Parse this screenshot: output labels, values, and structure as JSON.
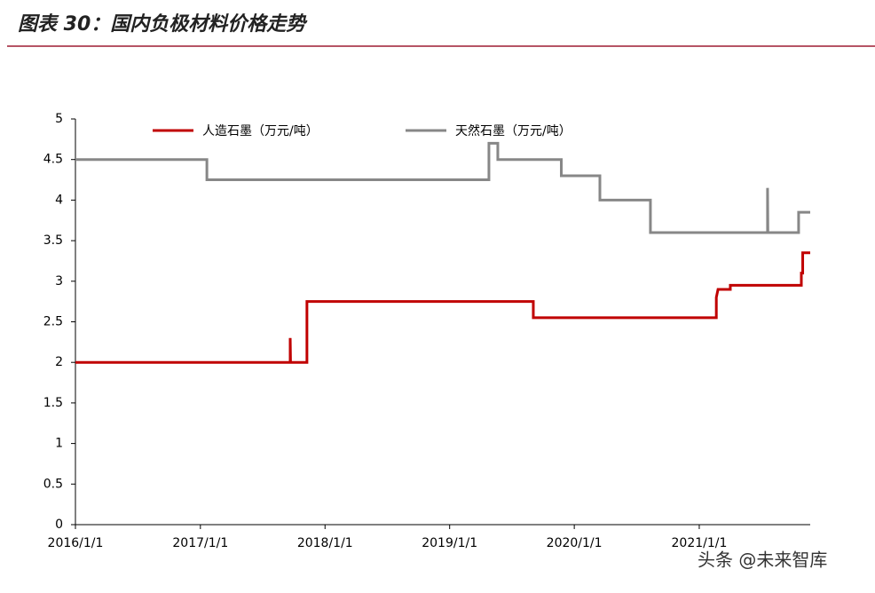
{
  "chart_data": {
    "type": "line",
    "title": "图表 30：国内负极材料价格走势",
    "watermark": "头条 @未来智库",
    "xlim": [
      "2016/1/1",
      "2021/11/22"
    ],
    "xticks": [
      "2016/1/1",
      "2017/1/1",
      "2018/1/1",
      "2019/1/1",
      "2020/1/1",
      "2021/1/1"
    ],
    "ylim": [
      0,
      5
    ],
    "yticks": [
      0,
      0.5,
      1,
      1.5,
      2,
      2.5,
      3,
      3.5,
      4,
      4.5,
      5
    ],
    "grid": false,
    "legend": "top",
    "series": [
      {
        "name": "人造石墨（万元/吨）",
        "color": "#c00000",
        "x": [
          "2016/1/1",
          "2017/9/21",
          "2017/9/21",
          "2017/9/22",
          "2017/11/9",
          "2017/11/9",
          "2019/9/3",
          "2019/9/3",
          "2021/2/20",
          "2021/2/20",
          "2021/2/25",
          "2021/4/2",
          "2021/4/2",
          "2021/10/27",
          "2021/10/27",
          "2021/10/31",
          "2021/10/31",
          "2021/11/22"
        ],
        "values": [
          2,
          2,
          2.3,
          2,
          2,
          2.75,
          2.75,
          2.55,
          2.55,
          2.8,
          2.9,
          2.9,
          2.95,
          2.95,
          3.1,
          3.1,
          3.35,
          3.35
        ]
      },
      {
        "name": "天然石墨（万元/吨）",
        "color": "#878787",
        "x": [
          "2016/1/1",
          "2017/1/20",
          "2017/1/20",
          "2019/4/26",
          "2019/4/26",
          "2019/5/22",
          "2019/5/22",
          "2019/11/24",
          "2019/11/24",
          "2020/3/16",
          "2020/3/16",
          "2020/8/11",
          "2020/8/11",
          "2021/7/20",
          "2021/7/20",
          "2021/7/21",
          "2021/10/19",
          "2021/10/19",
          "2021/11/22"
        ],
        "values": [
          4.5,
          4.5,
          4.25,
          4.25,
          4.7,
          4.7,
          4.5,
          4.5,
          4.3,
          4.3,
          4.0,
          4.0,
          3.6,
          3.6,
          4.15,
          3.6,
          3.6,
          3.85,
          3.85
        ]
      }
    ]
  }
}
